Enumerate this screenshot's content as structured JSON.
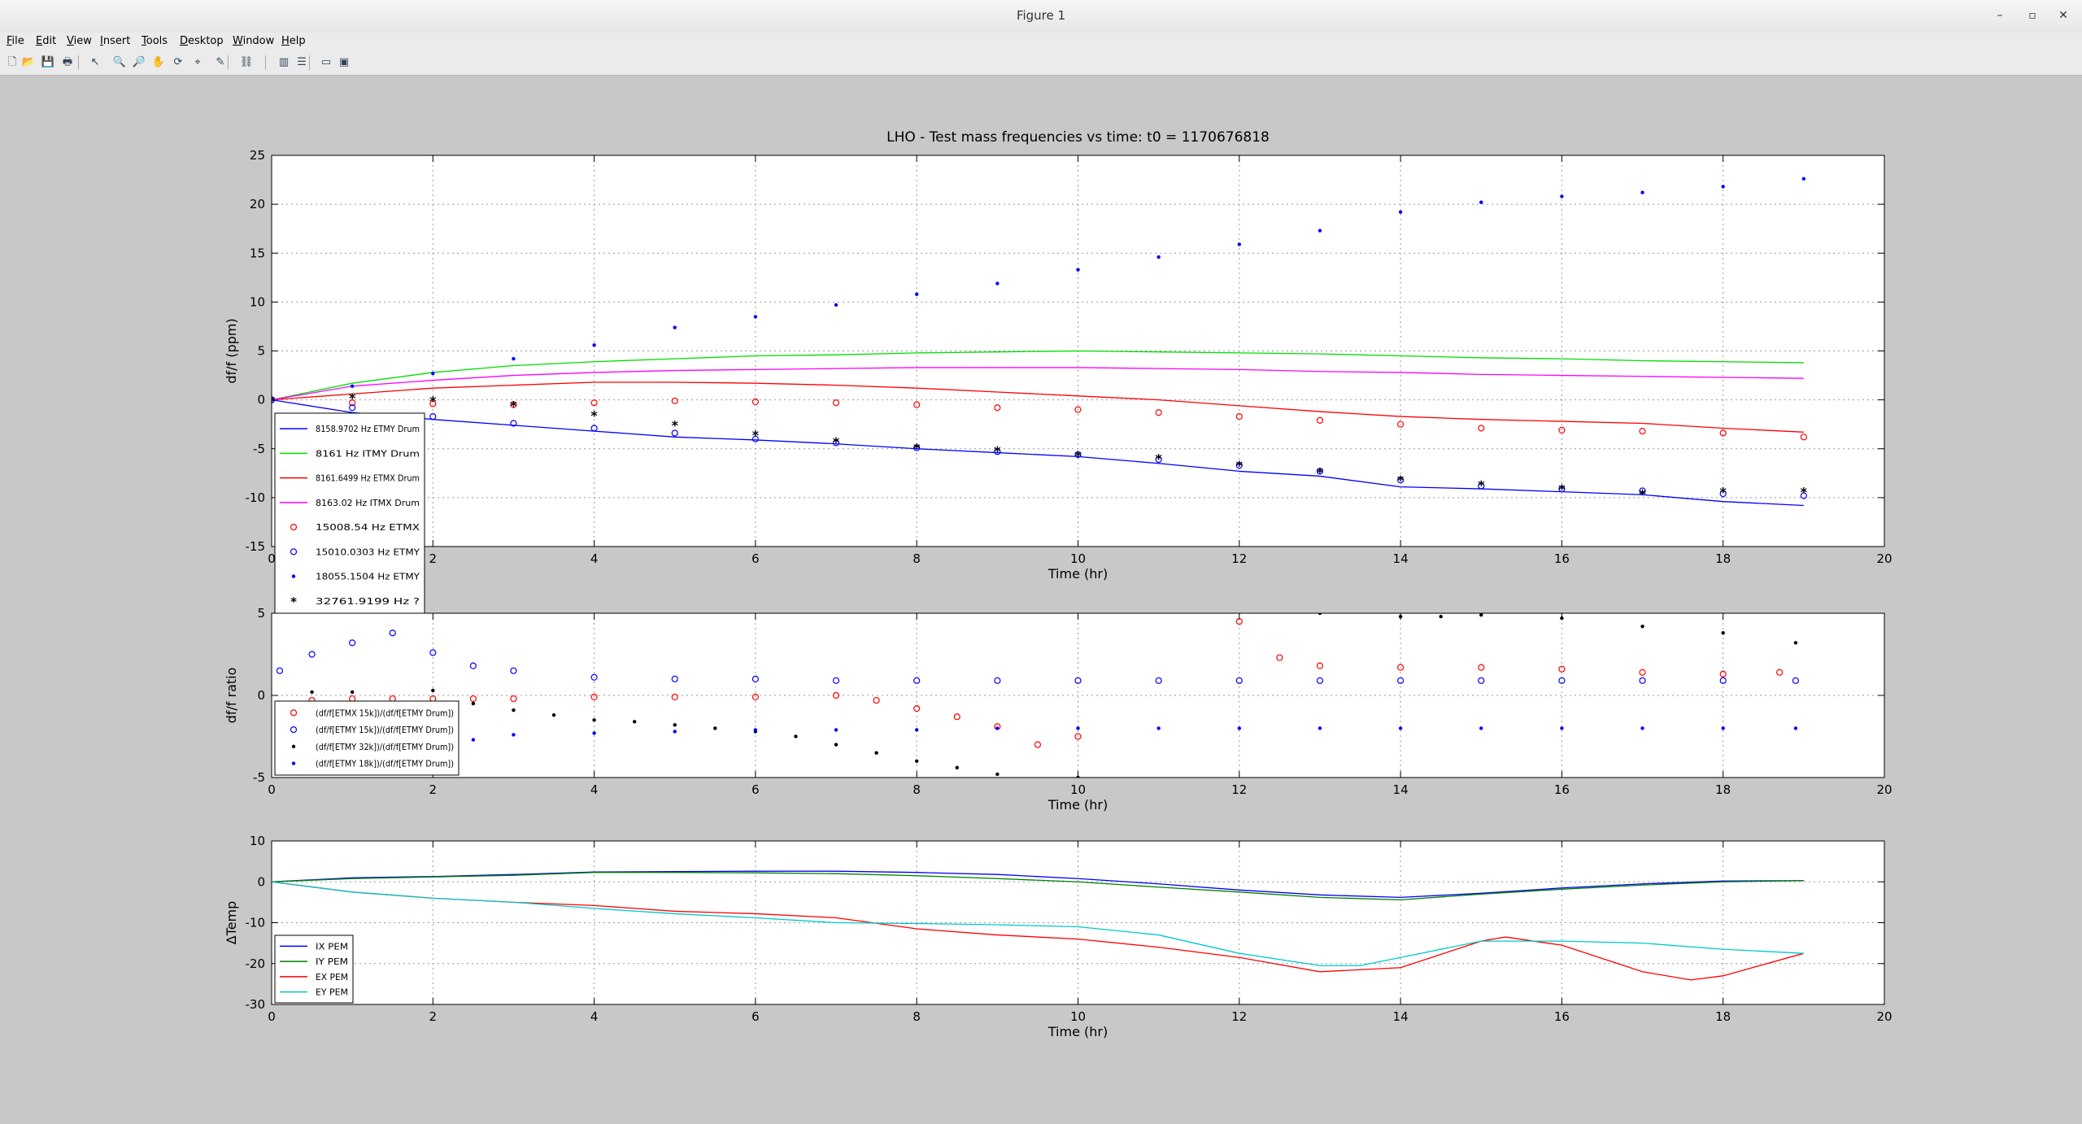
{
  "window": {
    "title": "Figure 1"
  },
  "menu": [
    {
      "label": "File",
      "u": "F",
      "rest": "ile"
    },
    {
      "label": "Edit",
      "u": "E",
      "rest": "dit"
    },
    {
      "label": "View",
      "u": "V",
      "rest": "iew"
    },
    {
      "label": "Insert",
      "u": "I",
      "rest": "nsert"
    },
    {
      "label": "Tools",
      "u": "T",
      "rest": "ools"
    },
    {
      "label": "Desktop",
      "u": "D",
      "rest": "esktop"
    },
    {
      "label": "Window",
      "u": "W",
      "rest": "indow"
    },
    {
      "label": "Help",
      "u": "H",
      "rest": "elp"
    }
  ],
  "toolbar": [
    "new-figure-icon",
    "open-file-icon",
    "save-icon",
    "print-icon",
    "pointer-icon",
    "zoom-in-icon",
    "zoom-out-icon",
    "pan-icon",
    "rotate-icon",
    "data-cursor-icon",
    "brush-icon",
    "link-plot-icon",
    "insert-colorbar-icon",
    "insert-legend-icon",
    "hide-plot-tools-icon",
    "show-plot-tools-icon"
  ],
  "colors": {
    "background": "#c8c8c8",
    "axes_bg": "#ffffff",
    "blue": "#0000ff",
    "green": "#00dd00",
    "red": "#ff0000",
    "magenta": "#ff00ff",
    "black": "#000000",
    "darkgreen": "#007f00",
    "cyan": "#00c8c8"
  },
  "chart_data": [
    {
      "type": "line",
      "title": "LHO - Test mass frequencies vs time: t0 = 1170676818",
      "xlabel": "Time (hr)",
      "ylabel": "df/f (ppm)",
      "xlim": [
        0,
        20
      ],
      "ylim": [
        -15,
        25
      ],
      "xticks": [
        0,
        2,
        4,
        6,
        8,
        10,
        12,
        14,
        16,
        18,
        20
      ],
      "yticks": [
        25,
        20,
        15,
        10,
        5,
        0,
        -5,
        -10,
        -15
      ],
      "grid": true,
      "legend_position": "lower-left",
      "series": [
        {
          "name": "8158.9702 Hz ETMY Drum",
          "marker": "line",
          "color": "#0000ff",
          "x": [
            0,
            1,
            2,
            3,
            4,
            5,
            6,
            7,
            8,
            9,
            10,
            11,
            12,
            13,
            14,
            15,
            16,
            17,
            18,
            19
          ],
          "y": [
            0,
            -1.3,
            -2.0,
            -2.6,
            -3.2,
            -3.8,
            -4.1,
            -4.5,
            -5.0,
            -5.4,
            -5.8,
            -6.5,
            -7.3,
            -7.8,
            -8.9,
            -9.1,
            -9.4,
            -9.7,
            -10.4,
            -10.8
          ]
        },
        {
          "name": "8161 Hz ITMY Drum",
          "marker": "line",
          "color": "#00dd00",
          "x": [
            0,
            1,
            2,
            3,
            4,
            5,
            6,
            7,
            8,
            9,
            10,
            11,
            12,
            13,
            14,
            15,
            16,
            17,
            18,
            19
          ],
          "y": [
            0,
            1.7,
            2.8,
            3.5,
            3.9,
            4.2,
            4.5,
            4.6,
            4.8,
            4.9,
            5.0,
            4.9,
            4.8,
            4.7,
            4.5,
            4.3,
            4.2,
            4.0,
            3.9,
            3.8
          ]
        },
        {
          "name": "8161.6499 Hz ETMX Drum",
          "marker": "line",
          "color": "#ff0000",
          "x": [
            0,
            1,
            2,
            3,
            4,
            5,
            6,
            7,
            8,
            9,
            10,
            11,
            12,
            13,
            14,
            15,
            16,
            17,
            18,
            19
          ],
          "y": [
            0,
            0.6,
            1.2,
            1.5,
            1.8,
            1.8,
            1.7,
            1.5,
            1.2,
            0.8,
            0.4,
            0,
            -0.6,
            -1.2,
            -1.7,
            -2.0,
            -2.2,
            -2.4,
            -2.9,
            -3.3
          ]
        },
        {
          "name": "8163.02 Hz ITMX Drum",
          "marker": "line",
          "color": "#ff00ff",
          "x": [
            0,
            1,
            2,
            3,
            4,
            5,
            6,
            7,
            8,
            9,
            10,
            11,
            12,
            13,
            14,
            15,
            16,
            17,
            18,
            19
          ],
          "y": [
            0,
            1.4,
            2.0,
            2.5,
            2.8,
            3.0,
            3.1,
            3.2,
            3.3,
            3.3,
            3.3,
            3.2,
            3.1,
            2.9,
            2.8,
            2.6,
            2.5,
            2.4,
            2.3,
            2.2
          ]
        },
        {
          "name": "15008.54 Hz ETMX",
          "marker": "circle",
          "color": "#ff0000",
          "x": [
            0,
            1,
            2,
            3,
            4,
            5,
            6,
            7,
            8,
            9,
            10,
            11,
            12,
            13,
            14,
            15,
            16,
            17,
            18,
            19
          ],
          "y": [
            0,
            -0.3,
            -0.4,
            -0.5,
            -0.3,
            -0.1,
            -0.2,
            -0.3,
            -0.5,
            -0.8,
            -1.0,
            -1.3,
            -1.7,
            -2.1,
            -2.5,
            -2.9,
            -3.1,
            -3.2,
            -3.4,
            -3.8
          ]
        },
        {
          "name": "15010.0303 Hz ETMY",
          "marker": "circle",
          "color": "#0000ff",
          "x": [
            0,
            1,
            2,
            3,
            4,
            5,
            6,
            7,
            8,
            9,
            10,
            11,
            12,
            13,
            14,
            15,
            16,
            17,
            18,
            19
          ],
          "y": [
            0,
            -0.8,
            -1.7,
            -2.4,
            -2.9,
            -3.4,
            -4.0,
            -4.4,
            -4.9,
            -5.3,
            -5.6,
            -6.1,
            -6.7,
            -7.3,
            -8.2,
            -8.8,
            -9.1,
            -9.3,
            -9.6,
            -9.8
          ]
        },
        {
          "name": "18055.1504 Hz ETMY",
          "marker": "dot",
          "color": "#0000ff",
          "x": [
            0,
            1,
            2,
            3,
            4,
            5,
            6,
            7,
            8,
            9,
            10,
            11,
            12,
            13,
            14,
            15,
            16,
            17,
            18,
            19
          ],
          "y": [
            0,
            1.4,
            2.7,
            4.2,
            5.6,
            7.4,
            8.5,
            9.7,
            10.8,
            11.9,
            13.3,
            14.6,
            15.9,
            17.3,
            19.2,
            20.2,
            20.8,
            21.2,
            21.8,
            22.6
          ]
        },
        {
          "name": "32761.9199 Hz ?",
          "marker": "star",
          "color": "#000000",
          "x": [
            0,
            1,
            2,
            3,
            4,
            5,
            6,
            7,
            8,
            9,
            10,
            11,
            12,
            13,
            14,
            15,
            16,
            17,
            18,
            19
          ],
          "y": [
            0,
            0.3,
            0,
            -0.5,
            -1.5,
            -2.5,
            -3.5,
            -4.2,
            -4.8,
            -5.1,
            -5.6,
            -5.9,
            -6.6,
            -7.3,
            -8.1,
            -8.6,
            -9.0,
            -9.5,
            -9.3,
            -9.3
          ]
        }
      ]
    },
    {
      "type": "scatter",
      "title": "",
      "xlabel": "Time (hr)",
      "ylabel": "df/f ratio",
      "xlim": [
        0,
        20
      ],
      "ylim": [
        -5,
        5
      ],
      "xticks": [
        0,
        2,
        4,
        6,
        8,
        10,
        12,
        14,
        16,
        18,
        20
      ],
      "yticks": [
        5,
        0,
        -5
      ],
      "grid": true,
      "legend_position": "lower-left",
      "series": [
        {
          "name": "(df/f[ETMX 15k])/(df/f[ETMY Drum])",
          "marker": "circle",
          "color": "#ff0000",
          "x": [
            0.5,
            1,
            1.5,
            2,
            2.5,
            3,
            4,
            5,
            6,
            7,
            7.5,
            8,
            8.5,
            9,
            9.5,
            10,
            12,
            12.5,
            13,
            14,
            15,
            16,
            17,
            18,
            18.7
          ],
          "y": [
            -0.3,
            -0.2,
            -0.2,
            -0.2,
            -0.2,
            -0.2,
            -0.1,
            -0.1,
            -0.1,
            0,
            -0.3,
            -0.8,
            -1.3,
            -1.9,
            -3.0,
            -2.5,
            4.5,
            2.3,
            1.8,
            1.7,
            1.7,
            1.6,
            1.4,
            1.3,
            1.4
          ]
        },
        {
          "name": "(df/f[ETMY 15k])/(df/f[ETMY Drum])",
          "marker": "circle",
          "color": "#0000ff",
          "x": [
            0.1,
            0.5,
            1,
            1.5,
            2,
            2.5,
            3,
            4,
            5,
            6,
            7,
            8,
            9,
            10,
            11,
            12,
            13,
            14,
            15,
            16,
            17,
            18,
            18.9
          ],
          "y": [
            1.5,
            2.5,
            3.2,
            3.8,
            2.6,
            1.8,
            1.5,
            1.1,
            1.0,
            1.0,
            0.9,
            0.9,
            0.9,
            0.9,
            0.9,
            0.9,
            0.9,
            0.9,
            0.9,
            0.9,
            0.9,
            0.9,
            0.9
          ]
        },
        {
          "name": "(df/f[ETMY 32k])/(df/f[ETMY Drum])",
          "marker": "dot",
          "color": "#000000",
          "x": [
            0.5,
            1,
            2,
            2.5,
            3,
            3.5,
            4,
            4.5,
            5,
            5.5,
            6,
            6.5,
            7,
            7.5,
            8,
            8.5,
            9,
            10,
            13,
            14,
            14.5,
            15,
            16,
            17,
            18,
            18.9
          ],
          "y": [
            0.2,
            0.2,
            0.3,
            -0.5,
            -0.9,
            -1.2,
            -1.5,
            -1.6,
            -1.8,
            -2.0,
            -2.2,
            -2.5,
            -3.0,
            -3.5,
            -4.0,
            -4.4,
            -4.8,
            -5.0,
            5.0,
            4.8,
            4.8,
            4.9,
            4.7,
            4.2,
            3.8,
            3.2
          ]
        },
        {
          "name": "(df/f[ETMY 18k])/(df/f[ETMY Drum])",
          "marker": "dot",
          "color": "#0000ff",
          "x": [
            0.5,
            1,
            1.5,
            2,
            2.5,
            3,
            4,
            5,
            6,
            7,
            8,
            9,
            10,
            11,
            12,
            13,
            14,
            15,
            16,
            17,
            18,
            18.9
          ],
          "y": [
            -2.8,
            -3.5,
            -4.0,
            -4.5,
            -2.7,
            -2.4,
            -2.3,
            -2.2,
            -2.1,
            -2.1,
            -2.1,
            -2.0,
            -2.0,
            -2.0,
            -2.0,
            -2.0,
            -2.0,
            -2.0,
            -2.0,
            -2.0,
            -2.0,
            -2.0
          ]
        }
      ]
    },
    {
      "type": "line",
      "title": "",
      "xlabel": "Time (hr)",
      "ylabel": "ΔTemp",
      "xlim": [
        0,
        20
      ],
      "ylim": [
        -30,
        10
      ],
      "xticks": [
        0,
        2,
        4,
        6,
        8,
        10,
        12,
        14,
        16,
        18,
        20
      ],
      "yticks": [
        10,
        0,
        -10,
        -20,
        -30
      ],
      "grid": true,
      "legend_position": "lower-left",
      "series": [
        {
          "name": "IX PEM",
          "marker": "line",
          "color": "#0000ff",
          "x": [
            0,
            1,
            2,
            3,
            4,
            5,
            6,
            7,
            8,
            9,
            10,
            11,
            12,
            13,
            14,
            15,
            16,
            17,
            18,
            19
          ],
          "y": [
            0,
            1.0,
            1.3,
            1.8,
            2.4,
            2.5,
            2.6,
            2.6,
            2.3,
            1.8,
            0.8,
            -0.5,
            -2.0,
            -3.2,
            -3.8,
            -2.8,
            -1.5,
            -0.5,
            0.2,
            0.3
          ]
        },
        {
          "name": "IY PEM",
          "marker": "line",
          "color": "#007f00",
          "x": [
            0,
            1,
            2,
            3,
            4,
            5,
            6,
            7,
            8,
            9,
            10,
            11,
            12,
            13,
            14,
            15,
            16,
            17,
            18,
            19
          ],
          "y": [
            0,
            0.8,
            1.2,
            1.6,
            2.3,
            2.3,
            2.2,
            2.0,
            1.5,
            0.8,
            0,
            -1.3,
            -2.5,
            -3.8,
            -4.4,
            -3.0,
            -1.8,
            -0.8,
            0,
            0.3
          ]
        },
        {
          "name": "EX PEM",
          "marker": "line",
          "color": "#ff0000",
          "x": [
            0,
            1,
            2,
            3,
            4,
            5,
            6,
            7,
            8,
            9,
            10,
            11,
            12,
            13,
            14,
            15,
            15.3,
            16,
            17,
            17.6,
            18,
            19
          ],
          "y": [
            0,
            -2.5,
            -4.0,
            -5.0,
            -5.8,
            -7.2,
            -7.8,
            -8.8,
            -11.5,
            -13.0,
            -14.0,
            -16.0,
            -18.5,
            -22.0,
            -21.0,
            -14.5,
            -13.5,
            -15.5,
            -22.0,
            -24.0,
            -23.0,
            -17.5
          ]
        },
        {
          "name": "EY PEM",
          "marker": "line",
          "color": "#00c8c8",
          "x": [
            0,
            1,
            2,
            3,
            4,
            5,
            6,
            7,
            8,
            9,
            10,
            11,
            12,
            13,
            13.5,
            14,
            15,
            16,
            17,
            18,
            19
          ],
          "y": [
            0,
            -2.5,
            -4.0,
            -5.0,
            -6.5,
            -7.8,
            -8.8,
            -10.0,
            -10.2,
            -10.5,
            -11.0,
            -13.0,
            -17.5,
            -20.5,
            -20.5,
            -18.5,
            -14.5,
            -14.5,
            -15.0,
            -16.5,
            -17.5
          ]
        }
      ]
    }
  ]
}
